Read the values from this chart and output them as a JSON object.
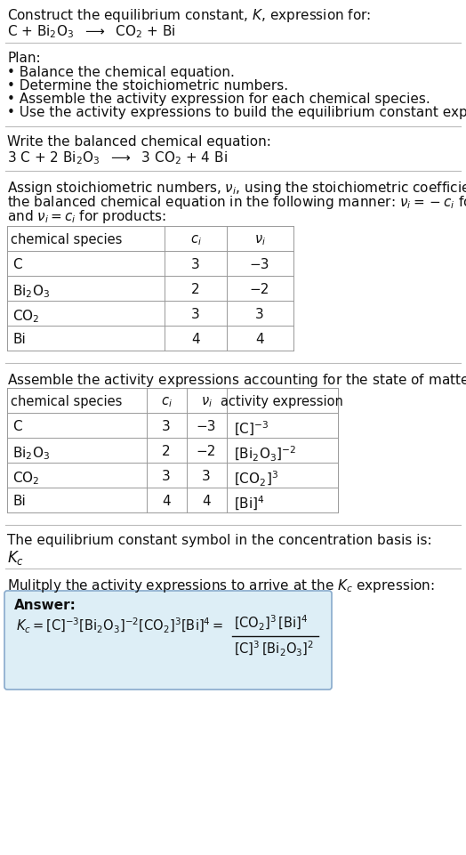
{
  "title_line1": "Construct the equilibrium constant, $K$, expression for:",
  "title_line2": "C + Bi$_2$O$_3$  $\\longrightarrow$  CO$_2$ + Bi",
  "plan_header": "Plan:",
  "plan_bullets": [
    "• Balance the chemical equation.",
    "• Determine the stoichiometric numbers.",
    "• Assemble the activity expression for each chemical species.",
    "• Use the activity expressions to build the equilibrium constant expression."
  ],
  "balanced_header": "Write the balanced chemical equation:",
  "balanced_eq": "3 C + 2 Bi$_2$O$_3$  $\\longrightarrow$  3 CO$_2$ + 4 Bi",
  "stoich_intro": "Assign stoichiometric numbers, $\\nu_i$, using the stoichiometric coefficients, $c_i$, from\nthe balanced chemical equation in the following manner: $\\nu_i = -c_i$ for reactants\nand $\\nu_i = c_i$ for products:",
  "table1_header": [
    "chemical species",
    "$c_i$",
    "$\\nu_i$"
  ],
  "table1_rows": [
    [
      "C",
      "3",
      "−3"
    ],
    [
      "Bi$_2$O$_3$",
      "2",
      "−2"
    ],
    [
      "CO$_2$",
      "3",
      "3"
    ],
    [
      "Bi",
      "4",
      "4"
    ]
  ],
  "assemble_intro": "Assemble the activity expressions accounting for the state of matter and $\\nu_i$:",
  "table2_header": [
    "chemical species",
    "$c_i$",
    "$\\nu_i$",
    "activity expression"
  ],
  "table2_rows": [
    [
      "C",
      "3",
      "−3",
      "[C]$^{-3}$"
    ],
    [
      "Bi$_2$O$_3$",
      "2",
      "−2",
      "[Bi$_2$O$_3$]$^{-2}$"
    ],
    [
      "CO$_2$",
      "3",
      "3",
      "[CO$_2$]$^3$"
    ],
    [
      "Bi",
      "4",
      "4",
      "[Bi]$^4$"
    ]
  ],
  "kc_intro": "The equilibrium constant symbol in the concentration basis is:",
  "kc_symbol": "$K_c$",
  "multiply_intro": "Mulitply the activity expressions to arrive at the $K_c$ expression:",
  "answer_label": "Answer:",
  "answer_box_bg": "#ddeef6",
  "answer_box_border": "#88aacc",
  "sep_color": "#bbbbbb",
  "text_color": "#111111",
  "bg_color": "#ffffff"
}
